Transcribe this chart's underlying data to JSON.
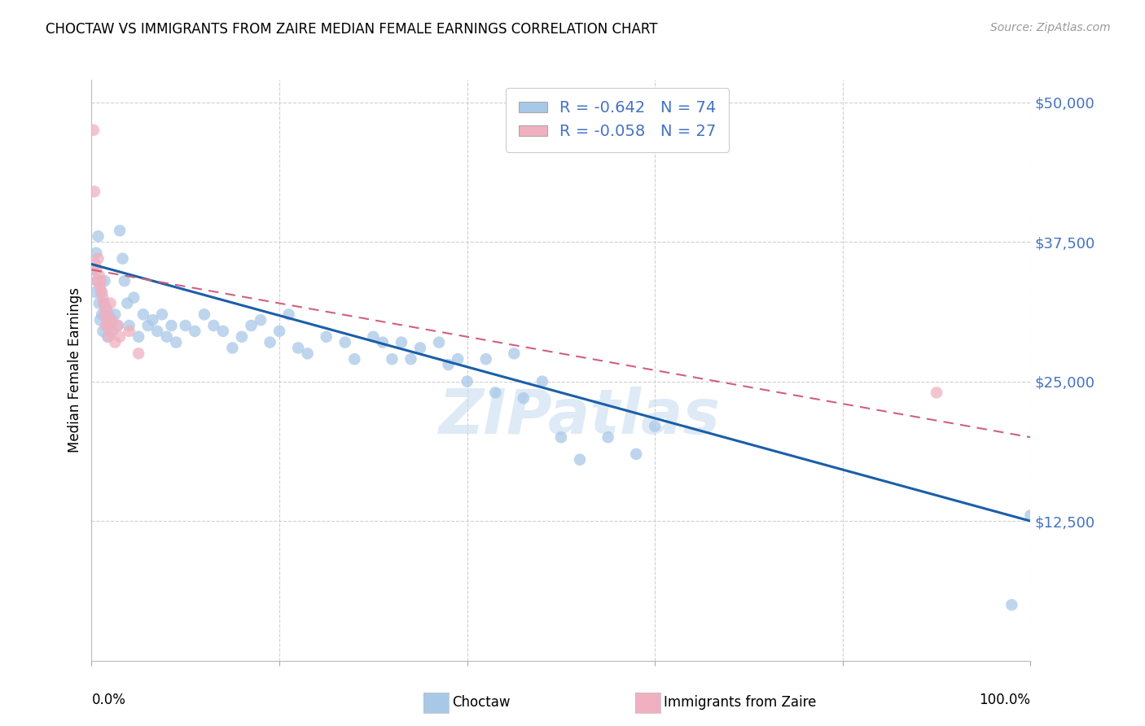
{
  "title": "CHOCTAW VS IMMIGRANTS FROM ZAIRE MEDIAN FEMALE EARNINGS CORRELATION CHART",
  "source": "Source: ZipAtlas.com",
  "ylabel": "Median Female Earnings",
  "ytick_labels": [
    "$12,500",
    "$25,000",
    "$37,500",
    "$50,000"
  ],
  "ytick_values": [
    12500,
    25000,
    37500,
    50000
  ],
  "ymin": 0,
  "ymax": 52000,
  "xmin": 0.0,
  "xmax": 1.0,
  "choctaw_color": "#a8c8e8",
  "zaire_color": "#f0b0c0",
  "choctaw_line_color": "#1a5fa8",
  "zaire_line_color": "#d06080",
  "watermark": "ZIPatlas",
  "choctaw_R": -0.642,
  "choctaw_N": 74,
  "zaire_R": -0.058,
  "zaire_N": 27,
  "choctaw_scatter_x": [
    0.002,
    0.004,
    0.005,
    0.006,
    0.007,
    0.008,
    0.009,
    0.01,
    0.011,
    0.012,
    0.013,
    0.014,
    0.015,
    0.016,
    0.017,
    0.018,
    0.02,
    0.022,
    0.025,
    0.028,
    0.03,
    0.033,
    0.035,
    0.038,
    0.04,
    0.045,
    0.05,
    0.055,
    0.06,
    0.065,
    0.07,
    0.075,
    0.08,
    0.085,
    0.09,
    0.1,
    0.11,
    0.12,
    0.13,
    0.14,
    0.15,
    0.16,
    0.17,
    0.18,
    0.19,
    0.2,
    0.21,
    0.22,
    0.23,
    0.25,
    0.27,
    0.28,
    0.3,
    0.31,
    0.32,
    0.33,
    0.34,
    0.35,
    0.37,
    0.38,
    0.39,
    0.4,
    0.42,
    0.43,
    0.45,
    0.46,
    0.48,
    0.5,
    0.52,
    0.55,
    0.58,
    0.6,
    0.98,
    1.0
  ],
  "choctaw_scatter_y": [
    35000,
    33000,
    36500,
    34000,
    38000,
    32000,
    30500,
    33000,
    31000,
    29500,
    32000,
    34000,
    31500,
    30000,
    29000,
    31000,
    30500,
    29500,
    31000,
    30000,
    38500,
    36000,
    34000,
    32000,
    30000,
    32500,
    29000,
    31000,
    30000,
    30500,
    29500,
    31000,
    29000,
    30000,
    28500,
    30000,
    29500,
    31000,
    30000,
    29500,
    28000,
    29000,
    30000,
    30500,
    28500,
    29500,
    31000,
    28000,
    27500,
    29000,
    28500,
    27000,
    29000,
    28500,
    27000,
    28500,
    27000,
    28000,
    28500,
    26500,
    27000,
    25000,
    27000,
    24000,
    27500,
    23500,
    25000,
    20000,
    18000,
    20000,
    18500,
    21000,
    5000,
    13000
  ],
  "zaire_scatter_x": [
    0.002,
    0.003,
    0.004,
    0.005,
    0.006,
    0.007,
    0.008,
    0.009,
    0.01,
    0.011,
    0.012,
    0.013,
    0.014,
    0.015,
    0.016,
    0.017,
    0.018,
    0.019,
    0.02,
    0.021,
    0.022,
    0.025,
    0.028,
    0.03,
    0.04,
    0.05,
    0.9
  ],
  "zaire_scatter_y": [
    47500,
    42000,
    35500,
    35000,
    34000,
    36000,
    34500,
    33500,
    34000,
    33000,
    32500,
    32000,
    31000,
    30000,
    31500,
    30500,
    29000,
    30000,
    32000,
    29500,
    30500,
    28500,
    30000,
    29000,
    29500,
    27500,
    24000
  ],
  "choctaw_line_x": [
    0.0,
    1.0
  ],
  "choctaw_line_y": [
    35500,
    12500
  ],
  "zaire_line_x": [
    0.0,
    1.0
  ],
  "zaire_line_y": [
    35000,
    20000
  ]
}
